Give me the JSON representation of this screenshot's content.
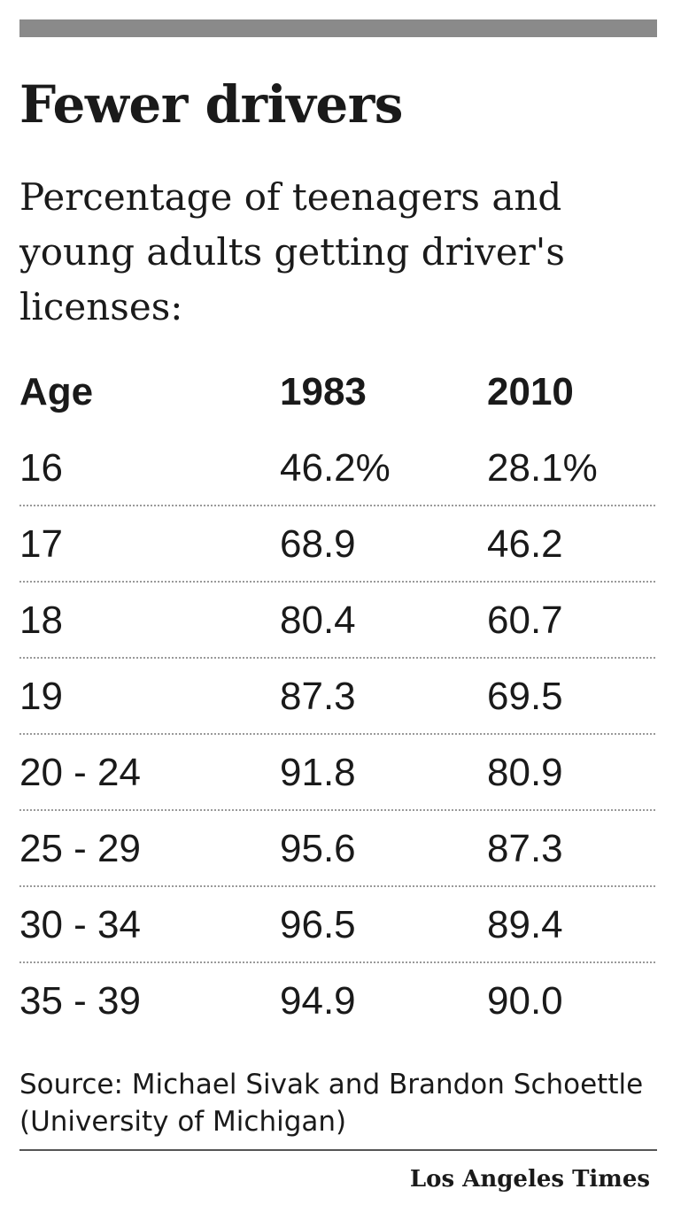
{
  "chart_data": {
    "type": "table",
    "title": "Fewer drivers",
    "subtitle": "Percentage of teenagers and young adults getting driver's licenses:",
    "columns": [
      "Age",
      "1983",
      "2010"
    ],
    "rows": [
      [
        "16",
        "46.2%",
        "28.1%"
      ],
      [
        "17",
        "68.9",
        "46.2"
      ],
      [
        "18",
        "80.4",
        "60.7"
      ],
      [
        "19",
        "87.3",
        "69.5"
      ],
      [
        "20 - 24",
        "91.8",
        "80.9"
      ],
      [
        "25 - 29",
        "95.6",
        "87.3"
      ],
      [
        "30 - 34",
        "96.5",
        "89.4"
      ],
      [
        "35 - 39",
        "94.9",
        "90.0"
      ]
    ],
    "source": "Source: Michael Sivak and Brandon Schoettle (University of Michigan)",
    "credit": "Los Angeles Times"
  }
}
